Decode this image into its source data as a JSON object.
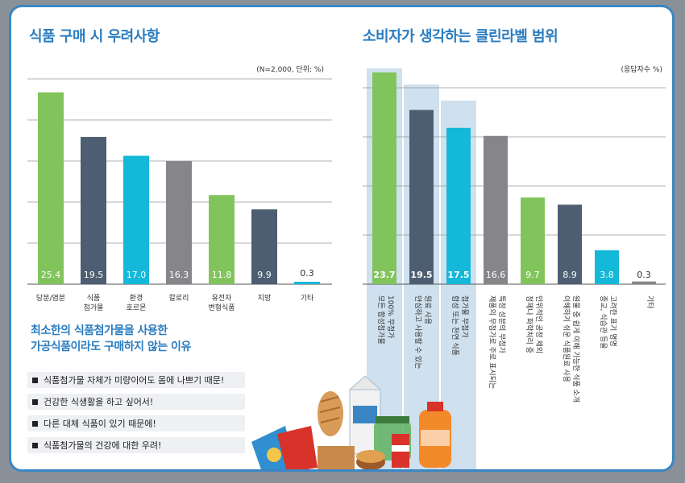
{
  "chart_data": [
    {
      "type": "bar",
      "title": "식품 구매 시 우려사항",
      "note": "(N=2,000, 단위: %)",
      "categories": [
        [
          "당분/염분"
        ],
        [
          "식품",
          "첨가물"
        ],
        [
          "환경",
          "호르몬"
        ],
        [
          "칼로리"
        ],
        [
          "유전자",
          "변형식품"
        ],
        [
          "지방"
        ],
        [
          "기타"
        ]
      ],
      "values": [
        25.4,
        19.5,
        17.0,
        16.3,
        11.8,
        9.9,
        0.3
      ],
      "value_labels": [
        "25.4",
        "19.5",
        "17.0",
        "16.3",
        "11.8",
        "9.9",
        "0.3"
      ],
      "colors": [
        "#82c45c",
        "#4d5e72",
        "#14b8d8",
        "#86868a",
        "#82c45c",
        "#4d5e72",
        "#14b8d8"
      ],
      "ylim": [
        0,
        27.5
      ],
      "grid": true
    },
    {
      "type": "bar",
      "title": "소비자가 생각하는 클린라벨 범위",
      "note": "(응답자수 %)",
      "categories": [
        [
          "100% 무첨가",
          "모든 합성첨가물"
        ],
        [
          "원료 사용",
          "안심하고 사용할 수 있는"
        ],
        [
          "첨가물 무첨가",
          "합성 또는 천연 식품"
        ],
        [
          "특정 성분의 무첨가",
          "제품의 무첨가로 주로 표시되는"
        ],
        [
          "인위적인 공정 제외",
          "정제나 화학처리 중"
        ],
        [
          "원물 중 쉽게 이해 가능한 식품 소개",
          "이해하기 쉬운 식품원료 사용"
        ],
        [
          "고려한 표기 명명",
          "종교, 식습관 등을"
        ],
        [
          "기타"
        ]
      ],
      "values": [
        23.7,
        19.5,
        17.5,
        16.6,
        9.7,
        8.9,
        3.8,
        0.3
      ],
      "value_labels": [
        "23.7",
        "19.5",
        "17.5",
        "16.6",
        "9.7",
        "8.9",
        "3.8",
        "0.3"
      ],
      "colors": [
        "#82c45c",
        "#4d5e72",
        "#14b8d8",
        "#86868a",
        "#82c45c",
        "#4d5e72",
        "#14b8d8",
        "#86868a"
      ],
      "highlighted": [
        true,
        true,
        true,
        false,
        false,
        false,
        false,
        false
      ],
      "ylim": [
        0,
        26.5
      ],
      "grid": true
    }
  ],
  "reasons": {
    "title_lines": [
      "최소한의 식품첨가물을 사용한",
      "가공식품이라도 구매하지 않는 이유"
    ],
    "items": [
      "식품첨가물 자체가 미량이어도 몸에 나쁘기 때문!",
      "건강한 식생활을 하고 싶어서!",
      "다른 대체 식품이 있기 때문에!",
      "식품첨가물의 건강에 대한 우려!"
    ]
  },
  "illustration": {
    "description_icon": "grocery-food-illustration-icon"
  }
}
